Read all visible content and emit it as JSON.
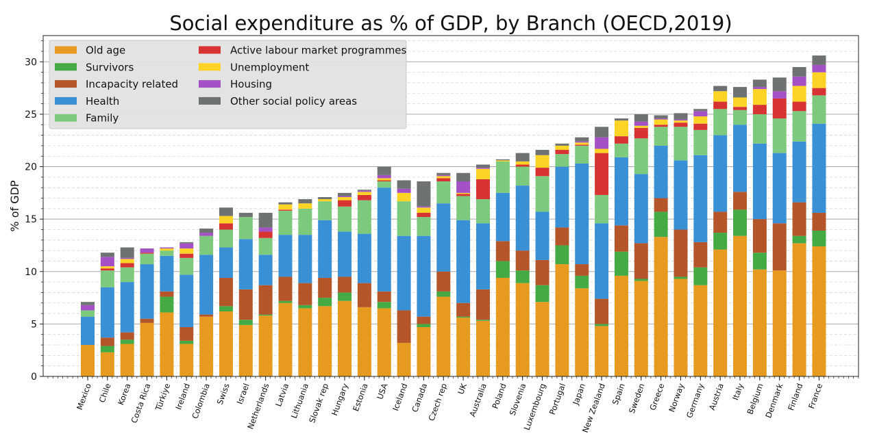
{
  "chart_data": {
    "type": "bar",
    "stacked": true,
    "title": "Social expenditure as % of GDP, by Branch (OECD,2019)",
    "xlabel": "",
    "ylabel": "% of GDP",
    "ylim": [
      0,
      32.5
    ],
    "yticks": [
      0,
      5,
      10,
      15,
      20,
      25,
      30
    ],
    "grid": "major solid, minor dashed",
    "legend_position": "top-left",
    "categories": [
      "Mexico",
      "Chile",
      "Korea",
      "Costa Rica",
      "Türkiye",
      "Ireland",
      "Colombia",
      "Swiss",
      "Israel",
      "Netherlands",
      "Latvia",
      "Lithuania",
      "Slovak rep",
      "Hungary",
      "Estonia",
      "USA",
      "Iceland",
      "Canada",
      "Czech rep",
      "UK",
      "Australia",
      "Poland",
      "Slovenia",
      "Luxembourg",
      "Portugal",
      "Japan",
      "New Zealand",
      "Spain",
      "Sweden",
      "Greece",
      "Norway",
      "Germany",
      "Austria",
      "Italy",
      "Belgium",
      "Denmark",
      "Finland",
      "France"
    ],
    "series": [
      {
        "name": "Old age",
        "color": "#e69a20",
        "values": [
          3.0,
          2.3,
          3.1,
          5.1,
          6.1,
          3.1,
          5.7,
          6.2,
          4.9,
          5.8,
          7.0,
          6.5,
          6.7,
          7.2,
          6.6,
          6.5,
          3.2,
          4.7,
          7.6,
          5.6,
          5.3,
          9.4,
          8.9,
          7.1,
          10.7,
          8.4,
          4.8,
          9.6,
          9.1,
          13.3,
          9.3,
          8.7,
          12.1,
          13.4,
          10.2,
          10.1,
          12.7,
          12.4
        ]
      },
      {
        "name": "Survivors",
        "color": "#44aa44",
        "values": [
          0.0,
          0.6,
          0.4,
          0.0,
          1.5,
          0.3,
          0.0,
          0.5,
          0.5,
          0.1,
          0.2,
          0.3,
          0.8,
          0.8,
          0.0,
          0.6,
          0.0,
          0.3,
          0.5,
          0.1,
          0.1,
          1.6,
          1.2,
          1.6,
          1.8,
          1.2,
          0.2,
          2.3,
          0.2,
          2.4,
          0.2,
          1.7,
          1.6,
          2.5,
          1.6,
          0.0,
          0.7,
          1.5
        ]
      },
      {
        "name": "Incapacity related",
        "color": "#b5562a",
        "values": [
          0.0,
          0.8,
          0.7,
          0.4,
          0.5,
          1.3,
          0.2,
          2.7,
          2.9,
          2.8,
          2.3,
          2.1,
          1.9,
          1.5,
          2.3,
          1.0,
          3.1,
          0.7,
          1.9,
          1.3,
          2.9,
          1.9,
          1.9,
          2.4,
          1.7,
          1.1,
          2.4,
          2.5,
          3.4,
          1.3,
          4.5,
          2.4,
          2.0,
          1.7,
          3.2,
          4.5,
          3.2,
          1.7
        ]
      },
      {
        "name": "Health",
        "color": "#3a90d5",
        "values": [
          2.7,
          4.8,
          4.8,
          5.2,
          3.4,
          5.0,
          5.7,
          2.9,
          4.8,
          2.9,
          4.0,
          4.6,
          5.5,
          4.3,
          4.7,
          9.9,
          7.1,
          7.7,
          6.5,
          7.9,
          6.3,
          4.6,
          6.2,
          4.6,
          5.8,
          9.6,
          7.2,
          6.5,
          6.6,
          5.0,
          6.6,
          8.3,
          7.3,
          6.4,
          7.2,
          6.7,
          5.8,
          8.5
        ]
      },
      {
        "name": "Family",
        "color": "#7dc97d",
        "values": [
          0.6,
          1.6,
          1.4,
          1.0,
          0.5,
          1.6,
          1.8,
          1.7,
          2.1,
          1.6,
          2.3,
          2.5,
          1.8,
          2.4,
          3.2,
          0.6,
          3.3,
          1.8,
          2.1,
          2.3,
          2.3,
          3.0,
          1.8,
          3.4,
          1.2,
          1.7,
          2.7,
          1.3,
          3.4,
          1.8,
          3.2,
          2.4,
          2.5,
          1.4,
          2.8,
          3.3,
          2.9,
          2.7
        ]
      },
      {
        "name": "Active labour market programmes",
        "color": "#d83333",
        "values": [
          0.0,
          0.2,
          0.4,
          0.1,
          0.0,
          0.4,
          0.0,
          0.6,
          0.0,
          0.6,
          0.1,
          0.0,
          0.0,
          0.6,
          0.5,
          0.1,
          0.0,
          0.4,
          0.3,
          0.2,
          1.9,
          0.0,
          0.2,
          0.8,
          0.4,
          0.1,
          4.0,
          0.7,
          1.0,
          0.2,
          0.4,
          0.6,
          0.7,
          0.3,
          0.9,
          1.9,
          0.9,
          0.7
        ]
      },
      {
        "name": "Unemployment",
        "color": "#fdd426",
        "values": [
          0.0,
          0.2,
          0.4,
          0.0,
          0.2,
          0.5,
          0.0,
          0.7,
          0.0,
          0.0,
          0.5,
          0.5,
          0.2,
          0.3,
          0.3,
          0.2,
          0.8,
          0.5,
          0.2,
          0.1,
          1.0,
          0.1,
          0.3,
          1.2,
          0.4,
          0.2,
          0.4,
          1.5,
          0.2,
          0.5,
          0.2,
          0.7,
          1.0,
          0.9,
          1.5,
          0.0,
          1.5,
          1.5
        ]
      },
      {
        "name": "Housing",
        "color": "#a451c6",
        "values": [
          0.5,
          0.9,
          0.1,
          0.4,
          0.1,
          0.5,
          0.3,
          0.0,
          0.0,
          0.4,
          0.0,
          0.0,
          0.0,
          0.1,
          0.1,
          0.3,
          0.4,
          0.1,
          0.1,
          1.1,
          0.1,
          0.0,
          0.0,
          0.0,
          0.0,
          0.1,
          1.1,
          0.0,
          0.4,
          0.1,
          0.1,
          0.5,
          0.0,
          0.0,
          0.2,
          0.7,
          0.9,
          0.7
        ]
      },
      {
        "name": "Other social policy areas",
        "color": "#6f7272",
        "values": [
          0.3,
          0.4,
          1.0,
          0.0,
          0.0,
          0.1,
          0.4,
          0.8,
          0.4,
          1.4,
          0.2,
          0.4,
          0.2,
          0.3,
          0.1,
          0.8,
          0.8,
          2.4,
          0.2,
          0.8,
          0.3,
          0.1,
          0.8,
          0.5,
          0.2,
          0.4,
          1.0,
          0.2,
          0.7,
          0.3,
          0.6,
          0.2,
          0.5,
          1.0,
          0.7,
          1.3,
          0.9,
          0.9
        ]
      }
    ]
  }
}
